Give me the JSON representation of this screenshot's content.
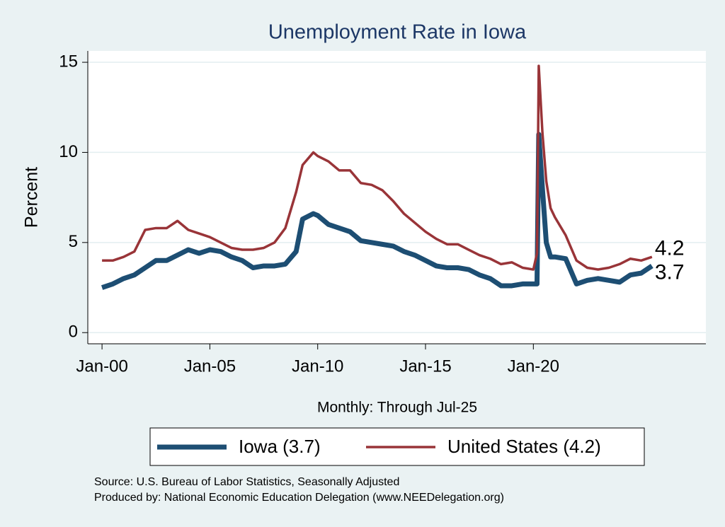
{
  "chart_data": {
    "type": "line",
    "title": "Unemployment Rate in Iowa",
    "xlabel": "Monthly: Through Jul-25",
    "ylabel": "Percent",
    "notes": [
      "Source: U.S. Bureau of Labor Statistics, Seasonally Adjusted",
      "Produced by: National Economic Education Delegation (www.NEEDelegation.org)"
    ],
    "x": [
      2000,
      2000.5,
      2001,
      2001.5,
      2002,
      2002.5,
      2003,
      2003.5,
      2004,
      2004.5,
      2005,
      2005.5,
      2006,
      2006.5,
      2007,
      2007.5,
      2008,
      2008.5,
      2009,
      2009.3,
      2009.8,
      2010,
      2010.5,
      2011,
      2011.5,
      2012,
      2012.5,
      2013,
      2013.5,
      2014,
      2014.5,
      2015,
      2015.5,
      2016,
      2016.5,
      2017,
      2017.5,
      2018,
      2018.5,
      2019,
      2019.5,
      2020,
      2020.17,
      2020.25,
      2020.42,
      2020.6,
      2020.8,
      2021,
      2021.5,
      2022,
      2022.5,
      2023,
      2023.5,
      2024,
      2024.5,
      2025,
      2025.5
    ],
    "series": [
      {
        "name": "Iowa (3.7)",
        "color": "#1d4e73",
        "width": 7,
        "values": [
          2.5,
          2.7,
          3.0,
          3.2,
          3.6,
          4.0,
          4.0,
          4.3,
          4.6,
          4.4,
          4.6,
          4.5,
          4.2,
          4.0,
          3.6,
          3.7,
          3.7,
          3.8,
          4.5,
          6.3,
          6.6,
          6.5,
          6.0,
          5.8,
          5.6,
          5.1,
          5.0,
          4.9,
          4.8,
          4.5,
          4.3,
          4.0,
          3.7,
          3.6,
          3.6,
          3.5,
          3.2,
          3.0,
          2.6,
          2.6,
          2.7,
          2.7,
          2.7,
          11.0,
          8.0,
          5.0,
          4.2,
          4.2,
          4.1,
          2.7,
          2.9,
          3.0,
          2.9,
          2.8,
          3.2,
          3.3,
          3.7
        ]
      },
      {
        "name": "United States (4.2)",
        "color": "#993438",
        "width": 3.5,
        "values": [
          4.0,
          4.0,
          4.2,
          4.5,
          5.7,
          5.8,
          5.8,
          6.2,
          5.7,
          5.5,
          5.3,
          5.0,
          4.7,
          4.6,
          4.6,
          4.7,
          5.0,
          5.8,
          7.8,
          9.3,
          10.0,
          9.8,
          9.5,
          9.0,
          9.0,
          8.3,
          8.2,
          7.9,
          7.3,
          6.6,
          6.1,
          5.6,
          5.2,
          4.9,
          4.9,
          4.6,
          4.3,
          4.1,
          3.8,
          3.9,
          3.6,
          3.5,
          4.4,
          14.8,
          11.1,
          8.4,
          6.9,
          6.4,
          5.4,
          4.0,
          3.6,
          3.5,
          3.6,
          3.8,
          4.1,
          4.0,
          4.2
        ]
      }
    ],
    "xlim": [
      1999.34,
      2028.0
    ],
    "xticks": [
      {
        "value": 2000,
        "label": "Jan-00"
      },
      {
        "value": 2005,
        "label": "Jan-05"
      },
      {
        "value": 2010,
        "label": "Jan-10"
      },
      {
        "value": 2015,
        "label": "Jan-15"
      },
      {
        "value": 2020,
        "label": "Jan-20"
      }
    ],
    "ylim": [
      -0.62,
      15.63
    ],
    "yticks": [
      0,
      5,
      10,
      15
    ],
    "grid": true
  }
}
